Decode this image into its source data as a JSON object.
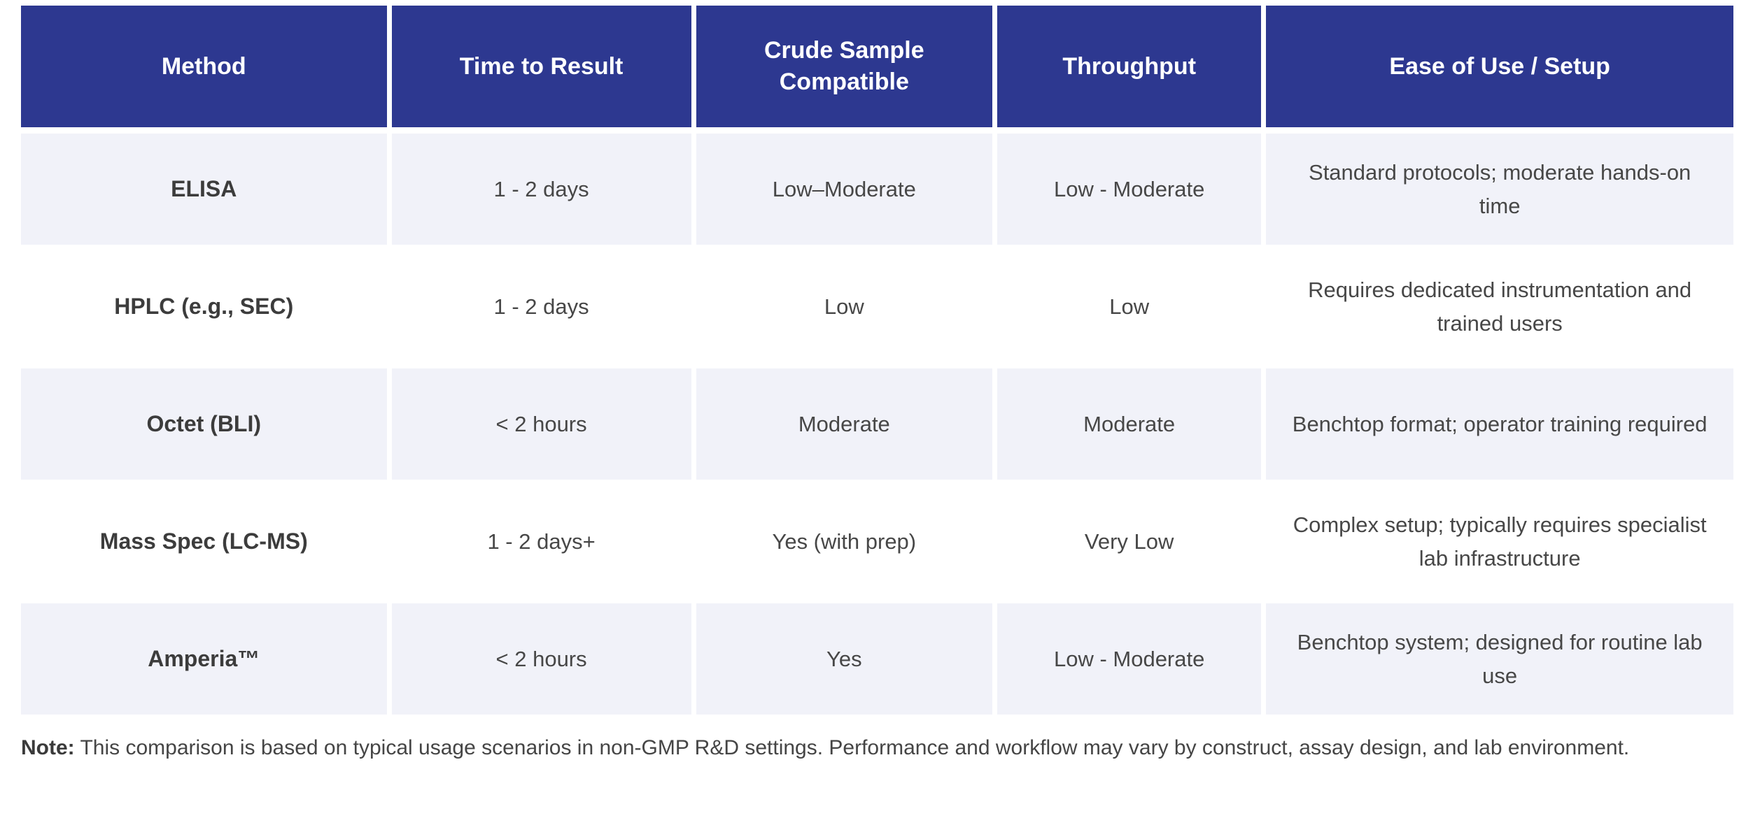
{
  "theme": {
    "header_bg": "#2d3890",
    "header_text": "#ffffff",
    "row_alt_bg": "#f1f2f9",
    "row_bg": "#ffffff",
    "body_text": "#474747"
  },
  "table": {
    "columns": [
      "Method",
      "Time to Result",
      "Crude Sample Compatible",
      "Throughput",
      "Ease of Use / Setup"
    ],
    "rows": [
      {
        "method": "ELISA",
        "time_to_result": "1 - 2 days",
        "crude_sample_compatible": "Low–Moderate",
        "throughput": "Low - Moderate",
        "ease_of_use": "Standard protocols; moderate hands-on time"
      },
      {
        "method": "HPLC (e.g., SEC)",
        "time_to_result": "1 - 2 days",
        "crude_sample_compatible": "Low",
        "throughput": "Low",
        "ease_of_use": "Requires dedicated instrumentation and trained users"
      },
      {
        "method": "Octet (BLI)",
        "time_to_result": "< 2 hours",
        "crude_sample_compatible": "Moderate",
        "throughput": "Moderate",
        "ease_of_use": "Benchtop format; operator training required"
      },
      {
        "method": "Mass Spec (LC-MS)",
        "time_to_result": "1 - 2 days+",
        "crude_sample_compatible": "Yes (with prep)",
        "throughput": "Very Low",
        "ease_of_use": "Complex setup; typically requires specialist lab infrastructure"
      },
      {
        "method": "Amperia™",
        "time_to_result": "< 2 hours",
        "crude_sample_compatible": "Yes",
        "throughput": "Low - Moderate",
        "ease_of_use": "Benchtop system; designed for routine lab use"
      }
    ]
  },
  "note": {
    "label": "Note:",
    "text": " This comparison is based on typical usage scenarios in non-GMP R&D settings. Performance and workflow may vary by construct, assay design, and lab environment."
  }
}
